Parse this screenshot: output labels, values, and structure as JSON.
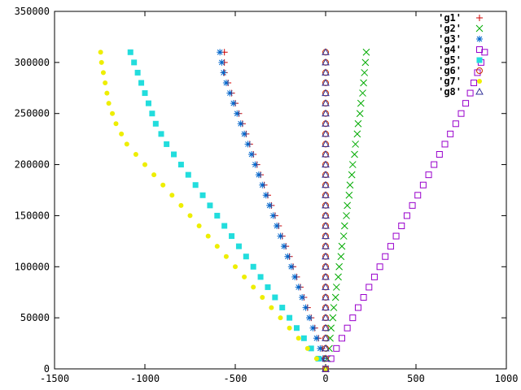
{
  "chart_data": {
    "type": "scatter",
    "title": "",
    "xlabel": "",
    "ylabel": "",
    "xlim": [
      -1500,
      1000
    ],
    "ylim": [
      0,
      350000
    ],
    "x_ticks": [
      "-1500",
      "-1000",
      "-500",
      "0",
      "500",
      "1000"
    ],
    "y_ticks": [
      "0",
      "50000",
      "100000",
      "150000",
      "200000",
      "250000",
      "300000",
      "350000"
    ],
    "grid": false,
    "legend_placement": "top-right",
    "series": [
      {
        "name": "'g1'",
        "marker": "plus",
        "color": "#cc0000",
        "points": [
          [
            0,
            0
          ],
          [
            -10,
            10000
          ],
          [
            -20,
            20000
          ],
          [
            -40,
            30000
          ],
          [
            -60,
            40000
          ],
          [
            -80,
            50000
          ],
          [
            -100,
            60000
          ],
          [
            -120,
            70000
          ],
          [
            -140,
            80000
          ],
          [
            -160,
            90000
          ],
          [
            -180,
            100000
          ],
          [
            -200,
            110000
          ],
          [
            -220,
            120000
          ],
          [
            -240,
            130000
          ],
          [
            -260,
            140000
          ],
          [
            -280,
            150000
          ],
          [
            -300,
            160000
          ],
          [
            -320,
            170000
          ],
          [
            -340,
            180000
          ],
          [
            -360,
            190000
          ],
          [
            -380,
            200000
          ],
          [
            -400,
            210000
          ],
          [
            -420,
            220000
          ],
          [
            -440,
            230000
          ],
          [
            -460,
            240000
          ],
          [
            -480,
            250000
          ],
          [
            -500,
            260000
          ],
          [
            -520,
            270000
          ],
          [
            -540,
            280000
          ],
          [
            -560,
            290000
          ],
          [
            -560,
            300000
          ],
          [
            -560,
            310000
          ]
        ]
      },
      {
        "name": "'g2'",
        "marker": "cross",
        "color": "#00aa00",
        "points": [
          [
            0,
            0
          ],
          [
            10,
            10000
          ],
          [
            20,
            20000
          ],
          [
            25,
            30000
          ],
          [
            30,
            40000
          ],
          [
            40,
            50000
          ],
          [
            45,
            60000
          ],
          [
            55,
            70000
          ],
          [
            60,
            80000
          ],
          [
            70,
            90000
          ],
          [
            75,
            100000
          ],
          [
            85,
            110000
          ],
          [
            90,
            120000
          ],
          [
            100,
            130000
          ],
          [
            105,
            140000
          ],
          [
            115,
            150000
          ],
          [
            120,
            160000
          ],
          [
            130,
            170000
          ],
          [
            135,
            180000
          ],
          [
            145,
            190000
          ],
          [
            150,
            200000
          ],
          [
            160,
            210000
          ],
          [
            165,
            220000
          ],
          [
            175,
            230000
          ],
          [
            180,
            240000
          ],
          [
            190,
            250000
          ],
          [
            195,
            260000
          ],
          [
            205,
            270000
          ],
          [
            210,
            280000
          ],
          [
            215,
            290000
          ],
          [
            220,
            300000
          ],
          [
            225,
            310000
          ]
        ]
      },
      {
        "name": "'g3'",
        "marker": "star",
        "color": "#0066cc",
        "points": [
          [
            0,
            0
          ],
          [
            -15,
            10000
          ],
          [
            -30,
            20000
          ],
          [
            -50,
            30000
          ],
          [
            -70,
            40000
          ],
          [
            -90,
            50000
          ],
          [
            -110,
            60000
          ],
          [
            -130,
            70000
          ],
          [
            -150,
            80000
          ],
          [
            -170,
            90000
          ],
          [
            -190,
            100000
          ],
          [
            -210,
            110000
          ],
          [
            -230,
            120000
          ],
          [
            -250,
            130000
          ],
          [
            -270,
            140000
          ],
          [
            -290,
            150000
          ],
          [
            -310,
            160000
          ],
          [
            -330,
            170000
          ],
          [
            -350,
            180000
          ],
          [
            -370,
            190000
          ],
          [
            -390,
            200000
          ],
          [
            -410,
            210000
          ],
          [
            -430,
            220000
          ],
          [
            -450,
            230000
          ],
          [
            -470,
            240000
          ],
          [
            -490,
            250000
          ],
          [
            -510,
            260000
          ],
          [
            -530,
            270000
          ],
          [
            -550,
            280000
          ],
          [
            -565,
            290000
          ],
          [
            -575,
            300000
          ],
          [
            -585,
            310000
          ]
        ]
      },
      {
        "name": "'g4'",
        "marker": "square-open",
        "color": "#9900cc",
        "points": [
          [
            0,
            0
          ],
          [
            30,
            10000
          ],
          [
            60,
            20000
          ],
          [
            90,
            30000
          ],
          [
            120,
            40000
          ],
          [
            150,
            50000
          ],
          [
            180,
            60000
          ],
          [
            210,
            70000
          ],
          [
            240,
            80000
          ],
          [
            270,
            90000
          ],
          [
            300,
            100000
          ],
          [
            330,
            110000
          ],
          [
            360,
            120000
          ],
          [
            390,
            130000
          ],
          [
            420,
            140000
          ],
          [
            450,
            150000
          ],
          [
            480,
            160000
          ],
          [
            510,
            170000
          ],
          [
            540,
            180000
          ],
          [
            570,
            190000
          ],
          [
            600,
            200000
          ],
          [
            630,
            210000
          ],
          [
            660,
            220000
          ],
          [
            690,
            230000
          ],
          [
            720,
            240000
          ],
          [
            750,
            250000
          ],
          [
            775,
            260000
          ],
          [
            800,
            270000
          ],
          [
            820,
            280000
          ],
          [
            840,
            290000
          ],
          [
            860,
            300000
          ],
          [
            880,
            310000
          ]
        ]
      },
      {
        "name": "'g5'",
        "marker": "square-filled",
        "color": "#22dddd",
        "points": [
          [
            0,
            0
          ],
          [
            -40,
            10000
          ],
          [
            -80,
            20000
          ],
          [
            -120,
            30000
          ],
          [
            -160,
            40000
          ],
          [
            -200,
            50000
          ],
          [
            -240,
            60000
          ],
          [
            -280,
            70000
          ],
          [
            -320,
            80000
          ],
          [
            -360,
            90000
          ],
          [
            -400,
            100000
          ],
          [
            -440,
            110000
          ],
          [
            -480,
            120000
          ],
          [
            -520,
            130000
          ],
          [
            -560,
            140000
          ],
          [
            -600,
            150000
          ],
          [
            -640,
            160000
          ],
          [
            -680,
            170000
          ],
          [
            -720,
            180000
          ],
          [
            -760,
            190000
          ],
          [
            -800,
            200000
          ],
          [
            -840,
            210000
          ],
          [
            -880,
            220000
          ],
          [
            -910,
            230000
          ],
          [
            -940,
            240000
          ],
          [
            -960,
            250000
          ],
          [
            -980,
            260000
          ],
          [
            -1000,
            270000
          ],
          [
            -1020,
            280000
          ],
          [
            -1040,
            290000
          ],
          [
            -1060,
            300000
          ],
          [
            -1080,
            310000
          ]
        ]
      },
      {
        "name": "'g6'",
        "marker": "circle-open",
        "color": "#cc3300",
        "points": [
          [
            0,
            0
          ],
          [
            0,
            10000
          ],
          [
            0,
            20000
          ],
          [
            0,
            30000
          ],
          [
            0,
            40000
          ],
          [
            0,
            50000
          ],
          [
            0,
            60000
          ],
          [
            0,
            70000
          ],
          [
            0,
            80000
          ],
          [
            0,
            90000
          ],
          [
            0,
            100000
          ],
          [
            0,
            110000
          ],
          [
            0,
            120000
          ],
          [
            0,
            130000
          ],
          [
            0,
            140000
          ],
          [
            0,
            150000
          ],
          [
            0,
            160000
          ],
          [
            0,
            170000
          ],
          [
            0,
            180000
          ],
          [
            0,
            190000
          ],
          [
            0,
            200000
          ],
          [
            0,
            210000
          ],
          [
            0,
            220000
          ],
          [
            0,
            230000
          ],
          [
            0,
            240000
          ],
          [
            0,
            250000
          ],
          [
            0,
            260000
          ],
          [
            0,
            270000
          ],
          [
            0,
            280000
          ],
          [
            0,
            290000
          ],
          [
            0,
            300000
          ],
          [
            0,
            310000
          ]
        ]
      },
      {
        "name": "'g7'",
        "marker": "circle-filled",
        "color": "#eeee00",
        "points": [
          [
            0,
            0
          ],
          [
            -50,
            10000
          ],
          [
            -100,
            20000
          ],
          [
            -150,
            30000
          ],
          [
            -200,
            40000
          ],
          [
            -250,
            50000
          ],
          [
            -300,
            60000
          ],
          [
            -350,
            70000
          ],
          [
            -400,
            80000
          ],
          [
            -450,
            90000
          ],
          [
            -500,
            100000
          ],
          [
            -550,
            110000
          ],
          [
            -600,
            120000
          ],
          [
            -650,
            130000
          ],
          [
            -700,
            140000
          ],
          [
            -750,
            150000
          ],
          [
            -800,
            160000
          ],
          [
            -850,
            170000
          ],
          [
            -900,
            180000
          ],
          [
            -950,
            190000
          ],
          [
            -1000,
            200000
          ],
          [
            -1050,
            210000
          ],
          [
            -1100,
            220000
          ],
          [
            -1130,
            230000
          ],
          [
            -1160,
            240000
          ],
          [
            -1180,
            250000
          ],
          [
            -1200,
            260000
          ],
          [
            -1210,
            270000
          ],
          [
            -1220,
            280000
          ],
          [
            -1230,
            290000
          ],
          [
            -1240,
            300000
          ],
          [
            -1245,
            310000
          ]
        ]
      },
      {
        "name": "'g8'",
        "marker": "triangle-open",
        "color": "#333399",
        "points": [
          [
            0,
            0
          ],
          [
            0,
            10000
          ],
          [
            0,
            20000
          ],
          [
            0,
            30000
          ],
          [
            0,
            40000
          ],
          [
            0,
            50000
          ],
          [
            0,
            60000
          ],
          [
            0,
            70000
          ],
          [
            0,
            80000
          ],
          [
            0,
            90000
          ],
          [
            0,
            100000
          ],
          [
            0,
            110000
          ],
          [
            0,
            120000
          ],
          [
            0,
            130000
          ],
          [
            0,
            140000
          ],
          [
            0,
            150000
          ],
          [
            0,
            160000
          ],
          [
            0,
            170000
          ],
          [
            0,
            180000
          ],
          [
            0,
            190000
          ],
          [
            0,
            200000
          ],
          [
            0,
            210000
          ],
          [
            0,
            220000
          ],
          [
            0,
            230000
          ],
          [
            0,
            240000
          ],
          [
            0,
            250000
          ],
          [
            0,
            260000
          ],
          [
            0,
            270000
          ],
          [
            0,
            280000
          ],
          [
            0,
            290000
          ],
          [
            0,
            300000
          ],
          [
            0,
            310000
          ]
        ]
      }
    ]
  }
}
